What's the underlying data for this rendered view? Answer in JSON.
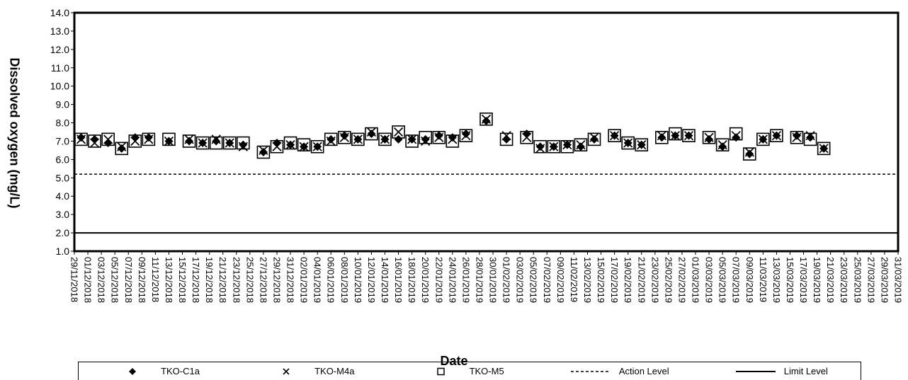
{
  "chart_data": {
    "type": "scatter",
    "xlabel": "Date",
    "ylabel": "Dissolved oxygen  (mg/L)",
    "ylim": [
      1.0,
      14.0
    ],
    "y_ticks": [
      "1.0",
      "2.0",
      "3.0",
      "4.0",
      "5.0",
      "6.0",
      "7.0",
      "8.0",
      "9.0",
      "10.0",
      "11.0",
      "12.0",
      "13.0",
      "14.0"
    ],
    "x_range": [
      "29/11/2018",
      "31/03/2019"
    ],
    "x_ticks": [
      "29/11/2018",
      "01/12/2018",
      "03/12/2018",
      "05/12/2018",
      "07/12/2018",
      "09/12/2018",
      "11/12/2018",
      "13/12/2018",
      "15/12/2018",
      "17/12/2018",
      "19/12/2018",
      "21/12/2018",
      "23/12/2018",
      "25/12/2018",
      "27/12/2018",
      "29/12/2018",
      "31/12/2018",
      "02/01/2019",
      "04/01/2019",
      "06/01/2019",
      "08/01/2019",
      "10/01/2019",
      "12/01/2019",
      "14/01/2019",
      "16/01/2019",
      "18/01/2019",
      "20/01/2019",
      "22/01/2019",
      "24/01/2019",
      "26/01/2019",
      "28/01/2019",
      "30/01/2019",
      "01/02/2019",
      "03/02/2019",
      "05/02/2019",
      "07/02/2019",
      "09/02/2019",
      "11/02/2019",
      "13/02/2019",
      "15/02/2019",
      "17/02/2019",
      "19/02/2019",
      "21/02/2019",
      "23/02/2019",
      "25/02/2019",
      "27/02/2019",
      "01/03/2019",
      "03/03/2019",
      "05/03/2019",
      "07/03/2019",
      "09/03/2019",
      "11/03/2019",
      "13/03/2019",
      "15/03/2019",
      "17/03/2019",
      "19/03/2019",
      "21/03/2019",
      "23/03/2019",
      "25/03/2019",
      "27/03/2019",
      "29/03/2019",
      "31/03/2019"
    ],
    "legend_position": "bottom",
    "grid": false,
    "series": [
      {
        "name": "TKO-C1a",
        "marker": "diamond",
        "color": "#000000",
        "points": [
          [
            "30/11/2018",
            7.2
          ],
          [
            "02/12/2018",
            7.1
          ],
          [
            "04/12/2018",
            6.9
          ],
          [
            "06/12/2018",
            6.6
          ],
          [
            "08/12/2018",
            7.2
          ],
          [
            "10/12/2018",
            7.2
          ],
          [
            "13/12/2018",
            7.0
          ],
          [
            "16/12/2018",
            7.0
          ],
          [
            "18/12/2018",
            6.9
          ],
          [
            "20/12/2018",
            7.0
          ],
          [
            "22/12/2018",
            6.9
          ],
          [
            "24/12/2018",
            6.8
          ],
          [
            "27/12/2018",
            6.4
          ],
          [
            "29/12/2018",
            6.9
          ],
          [
            "31/12/2018",
            6.8
          ],
          [
            "02/01/2019",
            6.7
          ],
          [
            "04/01/2019",
            6.7
          ],
          [
            "06/01/2019",
            7.1
          ],
          [
            "08/01/2019",
            7.3
          ],
          [
            "10/01/2019",
            7.1
          ],
          [
            "12/01/2019",
            7.4
          ],
          [
            "14/01/2019",
            7.1
          ],
          [
            "16/01/2019",
            7.1
          ],
          [
            "18/01/2019",
            7.1
          ],
          [
            "20/01/2019",
            7.1
          ],
          [
            "22/01/2019",
            7.3
          ],
          [
            "24/01/2019",
            7.2
          ],
          [
            "26/01/2019",
            7.4
          ],
          [
            "29/01/2019",
            8.1
          ],
          [
            "01/02/2019",
            7.1
          ],
          [
            "04/02/2019",
            7.4
          ],
          [
            "06/02/2019",
            6.7
          ],
          [
            "08/02/2019",
            6.7
          ],
          [
            "10/02/2019",
            6.8
          ],
          [
            "12/02/2019",
            6.7
          ],
          [
            "14/02/2019",
            7.1
          ],
          [
            "17/02/2019",
            7.3
          ],
          [
            "19/02/2019",
            6.9
          ],
          [
            "21/02/2019",
            6.8
          ],
          [
            "24/02/2019",
            7.2
          ],
          [
            "26/02/2019",
            7.3
          ],
          [
            "28/02/2019",
            7.3
          ],
          [
            "03/03/2019",
            7.1
          ],
          [
            "05/03/2019",
            6.7
          ],
          [
            "07/03/2019",
            7.2
          ],
          [
            "09/03/2019",
            6.3
          ],
          [
            "11/03/2019",
            7.1
          ],
          [
            "13/03/2019",
            7.3
          ],
          [
            "16/03/2019",
            7.3
          ],
          [
            "18/03/2019",
            7.2
          ],
          [
            "20/03/2019",
            6.6
          ]
        ]
      },
      {
        "name": "TKO-M4a",
        "marker": "cross",
        "color": "#000000",
        "points": [
          [
            "30/11/2018",
            7.1
          ],
          [
            "02/12/2018",
            6.9
          ],
          [
            "04/12/2018",
            7.1
          ],
          [
            "06/12/2018",
            6.7
          ],
          [
            "08/12/2018",
            7.0
          ],
          [
            "10/12/2018",
            7.1
          ],
          [
            "13/12/2018",
            7.0
          ],
          [
            "16/12/2018",
            7.1
          ],
          [
            "18/12/2018",
            6.9
          ],
          [
            "20/12/2018",
            7.1
          ],
          [
            "22/12/2018",
            6.9
          ],
          [
            "24/12/2018",
            6.7
          ],
          [
            "27/12/2018",
            6.5
          ],
          [
            "29/12/2018",
            6.7
          ],
          [
            "31/12/2018",
            6.8
          ],
          [
            "02/01/2019",
            6.7
          ],
          [
            "04/01/2019",
            6.7
          ],
          [
            "06/01/2019",
            7.0
          ],
          [
            "08/01/2019",
            7.2
          ],
          [
            "10/01/2019",
            7.1
          ],
          [
            "12/01/2019",
            7.5
          ],
          [
            "14/01/2019",
            7.1
          ],
          [
            "16/01/2019",
            7.5
          ],
          [
            "18/01/2019",
            7.1
          ],
          [
            "20/01/2019",
            7.0
          ],
          [
            "22/01/2019",
            7.2
          ],
          [
            "24/01/2019",
            7.1
          ],
          [
            "26/01/2019",
            7.3
          ],
          [
            "29/01/2019",
            8.2
          ],
          [
            "01/02/2019",
            7.3
          ],
          [
            "04/02/2019",
            7.2
          ],
          [
            "06/02/2019",
            6.6
          ],
          [
            "08/02/2019",
            6.7
          ],
          [
            "10/02/2019",
            6.8
          ],
          [
            "12/02/2019",
            6.8
          ],
          [
            "14/02/2019",
            7.2
          ],
          [
            "17/02/2019",
            7.3
          ],
          [
            "19/02/2019",
            6.9
          ],
          [
            "21/02/2019",
            6.8
          ],
          [
            "24/02/2019",
            7.3
          ],
          [
            "26/02/2019",
            7.3
          ],
          [
            "28/02/2019",
            7.3
          ],
          [
            "03/03/2019",
            7.2
          ],
          [
            "05/03/2019",
            6.8
          ],
          [
            "07/03/2019",
            7.3
          ],
          [
            "09/03/2019",
            6.4
          ],
          [
            "11/03/2019",
            7.1
          ],
          [
            "13/03/2019",
            7.3
          ],
          [
            "16/03/2019",
            7.2
          ],
          [
            "18/03/2019",
            7.3
          ],
          [
            "20/03/2019",
            6.6
          ]
        ]
      },
      {
        "name": "TKO-M5",
        "marker": "square",
        "color": "#000000",
        "points": [
          [
            "30/11/2018",
            7.1
          ],
          [
            "02/12/2018",
            7.0
          ],
          [
            "04/12/2018",
            7.1
          ],
          [
            "06/12/2018",
            6.6
          ],
          [
            "08/12/2018",
            7.0
          ],
          [
            "10/12/2018",
            7.1
          ],
          [
            "13/12/2018",
            7.1
          ],
          [
            "16/12/2018",
            7.0
          ],
          [
            "18/12/2018",
            6.9
          ],
          [
            "20/12/2018",
            6.9
          ],
          [
            "22/12/2018",
            6.9
          ],
          [
            "24/12/2018",
            6.9
          ],
          [
            "27/12/2018",
            6.4
          ],
          [
            "29/12/2018",
            6.7
          ],
          [
            "31/12/2018",
            6.9
          ],
          [
            "02/01/2019",
            6.8
          ],
          [
            "04/01/2019",
            6.7
          ],
          [
            "06/01/2019",
            7.1
          ],
          [
            "08/01/2019",
            7.2
          ],
          [
            "10/01/2019",
            7.1
          ],
          [
            "12/01/2019",
            7.4
          ],
          [
            "14/01/2019",
            7.1
          ],
          [
            "16/01/2019",
            7.5
          ],
          [
            "18/01/2019",
            7.0
          ],
          [
            "20/01/2019",
            7.2
          ],
          [
            "22/01/2019",
            7.2
          ],
          [
            "24/01/2019",
            7.0
          ],
          [
            "26/01/2019",
            7.3
          ],
          [
            "29/01/2019",
            8.2
          ],
          [
            "01/02/2019",
            7.1
          ],
          [
            "04/02/2019",
            7.2
          ],
          [
            "06/02/2019",
            6.7
          ],
          [
            "08/02/2019",
            6.7
          ],
          [
            "10/02/2019",
            6.7
          ],
          [
            "12/02/2019",
            6.8
          ],
          [
            "14/02/2019",
            7.1
          ],
          [
            "17/02/2019",
            7.3
          ],
          [
            "19/02/2019",
            6.9
          ],
          [
            "21/02/2019",
            6.8
          ],
          [
            "24/02/2019",
            7.2
          ],
          [
            "26/02/2019",
            7.4
          ],
          [
            "28/02/2019",
            7.3
          ],
          [
            "03/03/2019",
            7.2
          ],
          [
            "05/03/2019",
            6.8
          ],
          [
            "07/03/2019",
            7.4
          ],
          [
            "09/03/2019",
            6.3
          ],
          [
            "11/03/2019",
            7.1
          ],
          [
            "13/03/2019",
            7.3
          ],
          [
            "16/03/2019",
            7.2
          ],
          [
            "18/03/2019",
            7.1
          ],
          [
            "20/03/2019",
            6.6
          ]
        ]
      }
    ],
    "reference_lines": [
      {
        "name": "Action Level",
        "value": 5.2,
        "style": "dashed"
      },
      {
        "name": "Limit Level",
        "value": 2.0,
        "style": "solid"
      }
    ],
    "legend": {
      "items": [
        {
          "label": "TKO-C1a",
          "symbol": "diamond"
        },
        {
          "label": "TKO-M4a",
          "symbol": "cross"
        },
        {
          "label": "TKO-M5",
          "symbol": "square"
        },
        {
          "label": "Action Level",
          "symbol": "dashed-line"
        },
        {
          "label": "Limit Level",
          "symbol": "solid-line"
        }
      ]
    }
  }
}
